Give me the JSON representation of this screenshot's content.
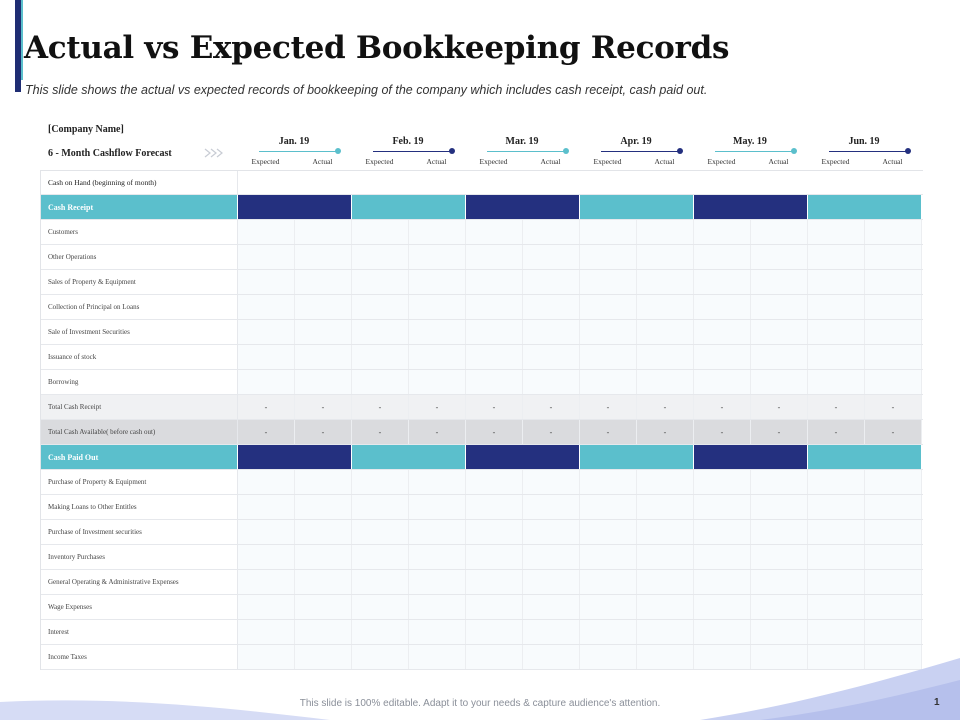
{
  "title": "Actual vs Expected Bookkeeping Records",
  "subtitle": "This slide shows the actual vs expected records of bookkeeping of the company which includes cash receipt, cash paid out.",
  "company_label": "[Company Name]",
  "forecast_label": "6 - Month Cashflow Forecast",
  "months": [
    {
      "name": "Jan. 19",
      "expected": "Expected",
      "actual": "Actual",
      "color": "#5bbfcc"
    },
    {
      "name": "Feb. 19",
      "expected": "Expected",
      "actual": "Actual",
      "color": "#24307f"
    },
    {
      "name": "Mar. 19",
      "expected": "Expected",
      "actual": "Actual",
      "color": "#5bbfcc"
    },
    {
      "name": "Apr. 19",
      "expected": "Expected",
      "actual": "Actual",
      "color": "#24307f"
    },
    {
      "name": "May. 19",
      "expected": "Expected",
      "actual": "Actual",
      "color": "#5bbfcc"
    },
    {
      "name": "Jun. 19",
      "expected": "Expected",
      "actual": "Actual",
      "color": "#24307f"
    }
  ],
  "rows": {
    "cash_on_hand": "Cash on Hand (beginning of month)",
    "cash_receipt": "Cash Receipt",
    "customers": "Customers",
    "other_operations": "Other Operations",
    "sales_property": "Sales of Property & Equipment",
    "collection_loans": "Collection of Principal on Loans",
    "sale_investment": "Sale of Investment Securities",
    "issuance_stock": "Issuance of stock",
    "borrowing": "Borrowing",
    "total_cash_receipt": "Total Cash Receipt",
    "total_cash_available": "Total Cash Available( before cash out)",
    "cash_paid_out": "Cash Paid Out",
    "purchase_property": "Purchase of Property & Equipment",
    "making_loans": "Making Loans to Other Entitles",
    "purchase_investment": "Purchase of Investment securities",
    "inventory_purchases": "Inventory Purchases",
    "general_operating": "General Operating & Administrative Expenses",
    "wage_expenses": "Wage Expenses",
    "interest": "Interest",
    "income_taxes": "Income Taxes"
  },
  "dash": "-",
  "colors": {
    "dark": "#24307f",
    "teal": "#5bbfcc"
  },
  "footer": "This slide is 100% editable. Adapt it to your needs & capture audience's attention.",
  "page_number": "1"
}
